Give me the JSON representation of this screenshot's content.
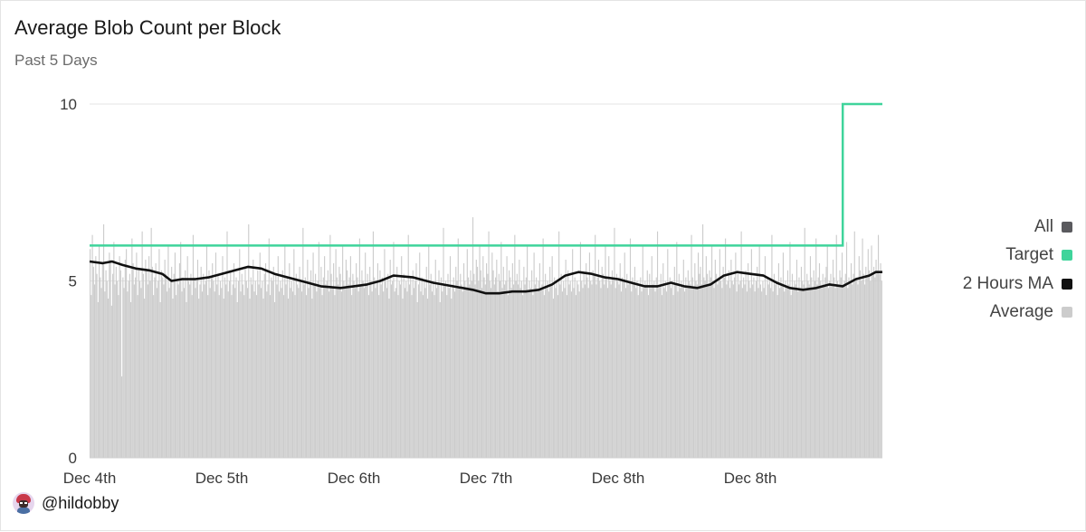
{
  "chart_data": {
    "type": "bar",
    "title": "Average Blob Count per Block",
    "subtitle": "Past 5 Days",
    "xlabel": "",
    "ylabel": "",
    "ylim": [
      0,
      10
    ],
    "yticks": [
      "0",
      "5",
      "10"
    ],
    "x_tick_labels": [
      "Dec 4th",
      "Dec 5th",
      "Dec 6th",
      "Dec 7th",
      "Dec 8th",
      "Dec 8th"
    ],
    "grid": "horizontal",
    "legend": {
      "placement": "right",
      "items": [
        {
          "label": "All",
          "color": "#5a5a5e"
        },
        {
          "label": "Target",
          "color": "#3fd49b"
        },
        {
          "label": "2 Hours MA",
          "color": "#111111"
        },
        {
          "label": "Average",
          "color": "#cccccc"
        }
      ]
    },
    "series": [
      {
        "name": "Target",
        "kind": "step",
        "color": "#3fd49b",
        "x": [
          0,
          5.7,
          5.7,
          6.0
        ],
        "values": [
          6,
          6,
          10,
          10
        ]
      },
      {
        "name": "2 Hours MA",
        "kind": "line",
        "color": "#111111",
        "x": [
          0,
          0.1,
          0.17,
          0.25,
          0.35,
          0.45,
          0.55,
          0.62,
          0.7,
          0.8,
          0.9,
          1.0,
          1.1,
          1.2,
          1.3,
          1.4,
          1.5,
          1.6,
          1.75,
          1.9,
          2.0,
          2.1,
          2.2,
          2.3,
          2.45,
          2.6,
          2.75,
          2.9,
          3.0,
          3.1,
          3.2,
          3.3,
          3.4,
          3.5,
          3.6,
          3.7,
          3.8,
          3.9,
          4.0,
          4.1,
          4.2,
          4.3,
          4.4,
          4.5,
          4.6,
          4.7,
          4.8,
          4.9,
          5.0,
          5.1,
          5.2,
          5.3,
          5.4,
          5.5,
          5.6,
          5.7,
          5.8,
          5.9,
          5.95,
          6.0
        ],
        "values": [
          5.55,
          5.5,
          5.55,
          5.45,
          5.35,
          5.3,
          5.2,
          5.0,
          5.05,
          5.05,
          5.1,
          5.2,
          5.3,
          5.4,
          5.35,
          5.2,
          5.1,
          5.0,
          4.85,
          4.8,
          4.85,
          4.9,
          5.0,
          5.15,
          5.1,
          4.95,
          4.85,
          4.75,
          4.65,
          4.65,
          4.7,
          4.7,
          4.75,
          4.9,
          5.15,
          5.25,
          5.2,
          5.1,
          5.05,
          4.95,
          4.85,
          4.85,
          4.95,
          4.85,
          4.8,
          4.9,
          5.15,
          5.25,
          5.2,
          5.15,
          4.95,
          4.8,
          4.75,
          4.8,
          4.9,
          4.85,
          5.05,
          5.15,
          5.25,
          5.25
        ]
      },
      {
        "name": "Average",
        "kind": "bars",
        "color": "#cccccc",
        "x_range": [
          0,
          6.0
        ],
        "bar_count": 700,
        "values": [
          5.9,
          4.6,
          6.3,
          5.4,
          4.9,
          5.7,
          5.2,
          4.4,
          6.0,
          5.1,
          4.8,
          5.5,
          6.6,
          4.7,
          5.3,
          5.0,
          4.5,
          5.8,
          5.6,
          4.3,
          5.2,
          6.1,
          4.9,
          5.4,
          5.0,
          4.6,
          5.7,
          5.3,
          2.3,
          5.1,
          4.8,
          5.6,
          5.9,
          4.7,
          5.0,
          5.2,
          4.4,
          6.2,
          5.5,
          4.9,
          5.1,
          5.8,
          4.6,
          5.3,
          5.0,
          4.8,
          6.4,
          5.2,
          4.5,
          5.6,
          5.3,
          4.9,
          5.7,
          5.0,
          4.7,
          6.5,
          5.4,
          4.6,
          5.1,
          5.5,
          4.8,
          5.0,
          5.9,
          4.4,
          5.3,
          5.1,
          4.9,
          5.6,
          5.2,
          4.7,
          6.0,
          4.8,
          5.0,
          5.4,
          4.5,
          5.2,
          5.8,
          4.6,
          5.0,
          4.9,
          5.5,
          6.1,
          4.7,
          5.1,
          4.8,
          5.3,
          4.4,
          5.7,
          5.0,
          4.9,
          5.2,
          4.6,
          6.3,
          5.1,
          4.8,
          5.0,
          5.6,
          4.5,
          4.9,
          5.4,
          4.7,
          5.2,
          4.9,
          5.0,
          6.0,
          4.6,
          5.3,
          4.8,
          5.1,
          4.4,
          5.5,
          5.0,
          4.7,
          5.8,
          4.9,
          5.2,
          4.6,
          5.0,
          4.8,
          5.7,
          4.5,
          5.1,
          4.9,
          6.4,
          4.7,
          5.0,
          5.3,
          4.6,
          4.9,
          5.5,
          4.8,
          5.1,
          4.4,
          5.0,
          5.9,
          4.7,
          5.2,
          4.9,
          4.6,
          5.4,
          5.0,
          4.8,
          6.6,
          4.5,
          5.1,
          4.9,
          5.6,
          4.7,
          5.0,
          4.6,
          5.3,
          4.9,
          5.8,
          4.8,
          5.0,
          4.5,
          5.2,
          5.5,
          4.7,
          4.9,
          6.2,
          4.6,
          5.1,
          5.0,
          4.8,
          5.4,
          4.4,
          5.2,
          4.9,
          5.7,
          4.7,
          5.0,
          4.8,
          5.3,
          4.6,
          6.0,
          4.9,
          5.1,
          4.5,
          5.5,
          4.8,
          5.0,
          4.7,
          5.9,
          4.6,
          5.2,
          4.9,
          4.8,
          5.4,
          5.0,
          4.7,
          6.5,
          4.9,
          5.1,
          4.6,
          5.6,
          4.8,
          5.0,
          5.3,
          4.5,
          5.8,
          4.9,
          5.2,
          4.7,
          5.0,
          6.1,
          4.8,
          5.4,
          4.6,
          5.1,
          5.7,
          4.9,
          5.0,
          5.3,
          4.7,
          6.3,
          5.2,
          4.8,
          5.5,
          5.0,
          4.6,
          5.9,
          5.1,
          4.9,
          5.4,
          5.2,
          4.7,
          6.0,
          5.0,
          4.8,
          5.6,
          5.3,
          4.9,
          5.1,
          5.7,
          4.6,
          5.2,
          5.0,
          4.8,
          5.5,
          5.1,
          4.7,
          6.2,
          4.9,
          5.3,
          5.0,
          4.8,
          5.8,
          4.9,
          5.2,
          4.6,
          5.4,
          5.0,
          4.7,
          6.4,
          5.1,
          4.8,
          5.0,
          5.5,
          4.6,
          5.3,
          4.9,
          5.1,
          4.7,
          5.9,
          5.0,
          4.8,
          5.2,
          4.5,
          5.6,
          4.9,
          5.0,
          6.1,
          4.7,
          5.1,
          4.8,
          5.4,
          4.6,
          5.0,
          4.9,
          5.7,
          4.5,
          5.2,
          4.8,
          5.0,
          4.7,
          6.3,
          4.9,
          5.1,
          4.6,
          5.3,
          4.8,
          5.0,
          5.5,
          4.4,
          4.9,
          5.8,
          4.7,
          5.1,
          4.6,
          5.0,
          4.8,
          5.4,
          4.5,
          6.0,
          4.9,
          5.2,
          4.7,
          5.0,
          4.6,
          5.6,
          4.8,
          4.9,
          5.3,
          4.4,
          5.1,
          4.7,
          6.5,
          4.9,
          5.0,
          4.6,
          5.2,
          4.8,
          5.7,
          4.5,
          4.9,
          5.1,
          4.7,
          5.4,
          4.6,
          5.0,
          6.2,
          4.8,
          5.2,
          4.9,
          4.7,
          5.5,
          5.0,
          4.8,
          5.9,
          5.1,
          4.9,
          5.3,
          5.0,
          6.8,
          5.2,
          4.9,
          5.6,
          5.4,
          5.0,
          6.0,
          5.3,
          4.8,
          5.7,
          5.1,
          4.9,
          5.5,
          5.2,
          6.4,
          5.0,
          4.8,
          5.8,
          5.3,
          4.9,
          5.1,
          5.6,
          4.7,
          5.2,
          5.0,
          6.1,
          4.8,
          5.4,
          4.9,
          5.0,
          5.7,
          4.6,
          5.3,
          5.1,
          4.8,
          5.5,
          4.9,
          6.3,
          5.0,
          4.7,
          5.2,
          4.9,
          5.6,
          4.8,
          5.0,
          4.6,
          5.4,
          4.9,
          5.1,
          6.0,
          4.7,
          5.0,
          4.8,
          5.3,
          4.6,
          5.8,
          4.9,
          5.1,
          4.7,
          5.0,
          5.5,
          4.8,
          4.9,
          6.2,
          4.6,
          5.2,
          4.8,
          5.0,
          4.7,
          5.4,
          4.9,
          5.7,
          4.5,
          5.1,
          4.8,
          5.0,
          4.6,
          6.4,
          4.9,
          5.2,
          4.7,
          5.0,
          4.8,
          5.6,
          4.6,
          5.3,
          4.9,
          5.0,
          4.7,
          5.9,
          4.8,
          5.1,
          4.6,
          5.0,
          5.4,
          4.9,
          4.7,
          6.1,
          5.0,
          4.8,
          5.2,
          4.9,
          5.5,
          5.1,
          4.8,
          5.8,
          5.0,
          4.9,
          5.3,
          5.2,
          6.3,
          4.9,
          5.1,
          5.6,
          5.0,
          4.8,
          5.4,
          5.2,
          4.9,
          6.0,
          5.1,
          4.8,
          5.7,
          5.0,
          4.9,
          5.3,
          5.1,
          6.5,
          4.8,
          5.2,
          5.0,
          4.9,
          5.5,
          4.7,
          5.1,
          5.0,
          5.8,
          4.8,
          5.2,
          4.9,
          5.0,
          6.2,
          4.7,
          5.1,
          4.9,
          5.4,
          4.8,
          5.0,
          4.6,
          5.6,
          4.9,
          5.1,
          4.7,
          6.0,
          4.8,
          5.0,
          4.9,
          5.3,
          4.6,
          5.2,
          4.8,
          5.7,
          4.9,
          5.0,
          4.7,
          5.1,
          6.4,
          4.8,
          4.9,
          5.2,
          4.6,
          5.5,
          4.8,
          5.0,
          4.7,
          5.9,
          4.9,
          5.1,
          4.8,
          5.0,
          4.6,
          5.4,
          4.9,
          6.1,
          4.7,
          5.2,
          4.8,
          5.0,
          4.9,
          5.6,
          4.7,
          5.1,
          4.8,
          5.3,
          5.0,
          4.9,
          6.3,
          5.1,
          4.8,
          5.5,
          5.0,
          4.9,
          5.8,
          5.2,
          5.0,
          5.4,
          4.9,
          6.6,
          5.1,
          5.0,
          5.7,
          5.2,
          4.9,
          5.3,
          5.1,
          6.0,
          5.0,
          4.8,
          5.6,
          5.2,
          4.9,
          5.1,
          5.9,
          5.0,
          4.8,
          5.4,
          5.1,
          6.2,
          4.9,
          5.0,
          5.3,
          4.8,
          5.6,
          5.0,
          4.9,
          5.1,
          5.8,
          4.7,
          5.2,
          4.9,
          5.0,
          6.4,
          4.8,
          5.1,
          4.9,
          5.3,
          4.7,
          5.5,
          5.0,
          4.8,
          5.9,
          4.9,
          5.1,
          4.7,
          5.0,
          5.4,
          4.8,
          6.0,
          4.9,
          5.2,
          4.7,
          5.0,
          4.8,
          5.7,
          4.6,
          5.1,
          4.9,
          5.0,
          4.8,
          6.3,
          4.7,
          5.2,
          4.9,
          5.0,
          4.6,
          5.5,
          4.8,
          5.1,
          4.9,
          5.8,
          4.7,
          5.0,
          4.8,
          5.3,
          4.9,
          6.1,
          4.6,
          5.2,
          4.8,
          5.0,
          4.9,
          5.6,
          4.7,
          5.1,
          4.8,
          5.4,
          5.0,
          4.9,
          6.5,
          4.8,
          5.2,
          5.0,
          4.9,
          5.7,
          5.1,
          4.8,
          5.3,
          5.0,
          6.2,
          4.9,
          5.1,
          5.5,
          5.0,
          4.8,
          5.9,
          5.2,
          4.9,
          5.1,
          5.4,
          6.0,
          4.8,
          5.0,
          5.2,
          4.9,
          5.6,
          5.1,
          4.8,
          6.3,
          5.0,
          4.9,
          5.3,
          5.1,
          5.8,
          4.9,
          5.0,
          5.2,
          6.1,
          4.8,
          5.1,
          5.0,
          5.5,
          4.9,
          5.2,
          6.4,
          5.0,
          5.1,
          4.9,
          5.7,
          5.3,
          5.0,
          6.2,
          5.2,
          4.9,
          5.4,
          5.1,
          5.9,
          5.3,
          5.0,
          6.0,
          5.2,
          5.4,
          5.1,
          5.6,
          5.3,
          6.3,
          5.2,
          5.5,
          5.0,
          4.0
        ]
      }
    ]
  },
  "credit": {
    "handle": "@hildobby"
  }
}
